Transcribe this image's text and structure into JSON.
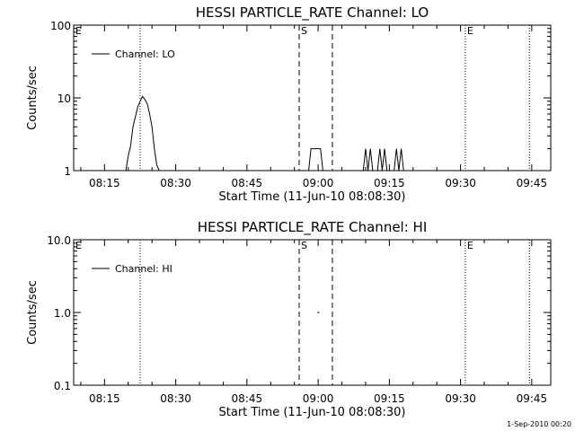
{
  "chart_data": [
    {
      "type": "line",
      "title": "HESSI PARTICLE_RATE Channel: LO",
      "xlabel": "Start Time (11-Jun-10 08:08:30)",
      "ylabel": "Counts/sec",
      "x_range": [
        "08:08:30",
        "09:49:00"
      ],
      "ylim": [
        1,
        100
      ],
      "yscale": "log",
      "xticks": [
        "08:15",
        "08:30",
        "08:45",
        "09:00",
        "09:15",
        "09:30",
        "09:45"
      ],
      "yticks": [
        "1",
        "10",
        "100"
      ],
      "legend": {
        "entry": "Channel: LO",
        "placement": "top-left"
      },
      "series": [
        {
          "name": "Channel: LO",
          "points": [
            [
              "08:19:30",
              1
            ],
            [
              "08:20:00",
              1.6
            ],
            [
              "08:20:30",
              2.2
            ],
            [
              "08:21:00",
              4
            ],
            [
              "08:21:30",
              5.5
            ],
            [
              "08:22:00",
              7.5
            ],
            [
              "08:22:30",
              9
            ],
            [
              "08:23:00",
              10.5
            ],
            [
              "08:23:30",
              9.5
            ],
            [
              "08:24:00",
              8.3
            ],
            [
              "08:24:30",
              6
            ],
            [
              "08:25:00",
              4
            ],
            [
              "08:25:30",
              2
            ],
            [
              "08:26:00",
              1.2
            ],
            [
              "08:26:30",
              1
            ],
            [
              "08:58:00",
              1
            ],
            [
              "08:58:30",
              2
            ],
            [
              "09:00:30",
              2
            ],
            [
              "09:01:00",
              1
            ],
            [
              "09:09:30",
              1
            ],
            [
              "09:10:00",
              2
            ],
            [
              "09:10:30",
              1
            ],
            [
              "09:11:00",
              2
            ],
            [
              "09:11:30",
              1
            ],
            [
              "09:12:30",
              1
            ],
            [
              "09:13:00",
              2
            ],
            [
              "09:13:30",
              1
            ],
            [
              "09:14:00",
              2
            ],
            [
              "09:14:30",
              1
            ],
            [
              "09:16:00",
              1
            ],
            [
              "09:16:30",
              2
            ],
            [
              "09:17:00",
              1
            ],
            [
              "09:17:30",
              2
            ],
            [
              "09:18:00",
              1
            ]
          ]
        }
      ],
      "markers": [
        {
          "time": "08:08:30",
          "label": "E",
          "style": "dotted"
        },
        {
          "time": "08:22:30",
          "label": "",
          "style": "dotted"
        },
        {
          "time": "08:56:00",
          "label": "S",
          "style": "dashed"
        },
        {
          "time": "09:03:00",
          "label": "",
          "style": "dashed"
        },
        {
          "time": "09:31:00",
          "label": "E",
          "style": "dotted"
        },
        {
          "time": "09:44:30",
          "label": "",
          "style": "dotted"
        }
      ]
    },
    {
      "type": "line",
      "title": "HESSI PARTICLE_RATE Channel: HI",
      "xlabel": "Start Time (11-Jun-10 08:08:30)",
      "ylabel": "Counts/sec",
      "x_range": [
        "08:08:30",
        "09:49:00"
      ],
      "ylim": [
        0.1,
        10
      ],
      "yscale": "log",
      "xticks": [
        "08:15",
        "08:30",
        "08:45",
        "09:00",
        "09:15",
        "09:30",
        "09:45"
      ],
      "yticks": [
        "0.1",
        "1.0",
        "10.0"
      ],
      "legend": {
        "entry": "Channel: HI",
        "placement": "top-left"
      },
      "series": [
        {
          "name": "Channel: HI",
          "points": [
            [
              "09:00:00",
              1.0
            ]
          ]
        }
      ],
      "markers": [
        {
          "time": "08:08:30",
          "label": "E",
          "style": "dotted"
        },
        {
          "time": "08:22:30",
          "label": "",
          "style": "dotted"
        },
        {
          "time": "08:56:00",
          "label": "S",
          "style": "dashed"
        },
        {
          "time": "09:03:00",
          "label": "",
          "style": "dashed"
        },
        {
          "time": "09:31:00",
          "label": "E",
          "style": "dotted"
        },
        {
          "time": "09:44:30",
          "label": "",
          "style": "dotted"
        }
      ]
    }
  ],
  "footer": {
    "date_stamp": "1-Sep-2010 00:20"
  }
}
